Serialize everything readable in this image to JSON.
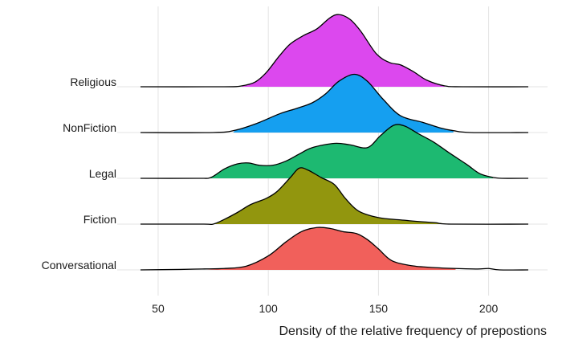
{
  "chart_data": {
    "type": "ridgeline",
    "title": "",
    "xlabel": "Density of the relative frequency of prepostions",
    "ylabel": "",
    "xlim": [
      42,
      218
    ],
    "xticks": [
      50,
      100,
      150,
      200
    ],
    "grid": true,
    "legend": "none",
    "categories": [
      "Conversational",
      "Fiction",
      "Legal",
      "NonFiction",
      "Religious"
    ],
    "series": [
      {
        "name": "Conversational",
        "color": "#f1605b",
        "fill_range": [
          72,
          185
        ],
        "peak": 1.1,
        "points": [
          [
            42,
            0.0
          ],
          [
            60,
            0.01
          ],
          [
            70,
            0.02
          ],
          [
            80,
            0.03
          ],
          [
            90,
            0.08
          ],
          [
            100,
            0.3
          ],
          [
            108,
            0.6
          ],
          [
            115,
            0.82
          ],
          [
            122,
            0.91
          ],
          [
            128,
            0.89
          ],
          [
            134,
            0.82
          ],
          [
            140,
            0.78
          ],
          [
            145,
            0.65
          ],
          [
            150,
            0.45
          ],
          [
            156,
            0.2
          ],
          [
            165,
            0.09
          ],
          [
            175,
            0.05
          ],
          [
            185,
            0.03
          ],
          [
            195,
            0.02
          ],
          [
            200,
            0.03
          ],
          [
            205,
            0.0
          ],
          [
            218,
            0.0
          ]
        ]
      },
      {
        "name": "Fiction",
        "color": "#92960e",
        "fill_range": [
          75,
          183
        ],
        "peak": 1.1,
        "points": [
          [
            42,
            0.0
          ],
          [
            70,
            0.0
          ],
          [
            75,
            0.0
          ],
          [
            80,
            0.1
          ],
          [
            86,
            0.25
          ],
          [
            92,
            0.42
          ],
          [
            99,
            0.55
          ],
          [
            104,
            0.7
          ],
          [
            110,
            1.0
          ],
          [
            114,
            1.2
          ],
          [
            118,
            1.16
          ],
          [
            124,
            1.0
          ],
          [
            130,
            0.85
          ],
          [
            135,
            0.55
          ],
          [
            141,
            0.28
          ],
          [
            150,
            0.14
          ],
          [
            160,
            0.09
          ],
          [
            170,
            0.05
          ],
          [
            176,
            0.03
          ],
          [
            183,
            0.0
          ],
          [
            218,
            0.0
          ]
        ]
      },
      {
        "name": "Legal",
        "color": "#1db971",
        "fill_range": [
          73,
          202
        ],
        "peak": 1.1,
        "points": [
          [
            42,
            0.0
          ],
          [
            68,
            0.0
          ],
          [
            74,
            0.02
          ],
          [
            80,
            0.2
          ],
          [
            86,
            0.31
          ],
          [
            91,
            0.33
          ],
          [
            96,
            0.28
          ],
          [
            102,
            0.28
          ],
          [
            108,
            0.37
          ],
          [
            114,
            0.52
          ],
          [
            120,
            0.66
          ],
          [
            130,
            0.75
          ],
          [
            137,
            0.72
          ],
          [
            145,
            0.66
          ],
          [
            151,
            0.92
          ],
          [
            157,
            1.14
          ],
          [
            162,
            1.12
          ],
          [
            168,
            0.96
          ],
          [
            175,
            0.78
          ],
          [
            182,
            0.55
          ],
          [
            190,
            0.3
          ],
          [
            196,
            0.1
          ],
          [
            202,
            0.02
          ],
          [
            206,
            0.0
          ],
          [
            218,
            0.0
          ]
        ]
      },
      {
        "name": "NonFiction",
        "color": "#159ff0",
        "fill_range": [
          84,
          184
        ],
        "peak": 1.1,
        "points": [
          [
            42,
            0.0
          ],
          [
            75,
            0.0
          ],
          [
            85,
            0.05
          ],
          [
            95,
            0.2
          ],
          [
            105,
            0.4
          ],
          [
            113,
            0.52
          ],
          [
            120,
            0.64
          ],
          [
            126,
            0.83
          ],
          [
            132,
            1.1
          ],
          [
            139,
            1.25
          ],
          [
            145,
            1.1
          ],
          [
            152,
            0.72
          ],
          [
            160,
            0.36
          ],
          [
            170,
            0.22
          ],
          [
            178,
            0.1
          ],
          [
            184,
            0.04
          ],
          [
            192,
            0.0
          ],
          [
            218,
            0.0
          ]
        ]
      },
      {
        "name": "Religious",
        "color": "#dc48ee",
        "fill_range": [
          88,
          180
        ],
        "peak": 1.1,
        "points": [
          [
            42,
            0.0
          ],
          [
            80,
            0.0
          ],
          [
            88,
            0.02
          ],
          [
            94,
            0.1
          ],
          [
            99,
            0.3
          ],
          [
            105,
            0.66
          ],
          [
            110,
            0.92
          ],
          [
            116,
            1.1
          ],
          [
            122,
            1.24
          ],
          [
            128,
            1.48
          ],
          [
            132,
            1.55
          ],
          [
            137,
            1.45
          ],
          [
            142,
            1.19
          ],
          [
            149,
            0.71
          ],
          [
            155,
            0.52
          ],
          [
            160,
            0.47
          ],
          [
            166,
            0.32
          ],
          [
            172,
            0.14
          ],
          [
            180,
            0.02
          ],
          [
            188,
            0.0
          ],
          [
            218,
            0.0
          ]
        ]
      }
    ]
  }
}
